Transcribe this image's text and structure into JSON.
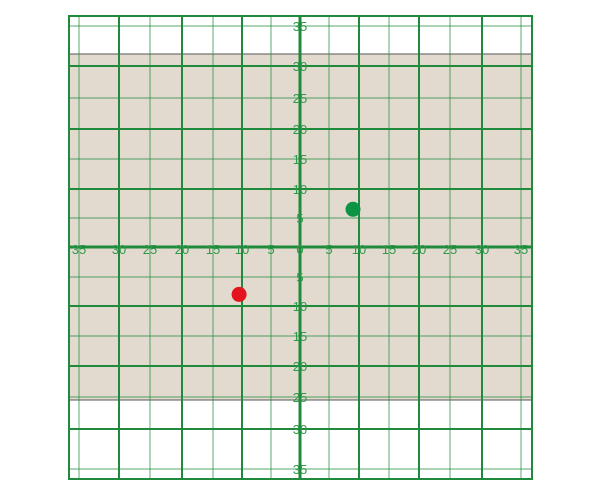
{
  "chart_data": {
    "type": "scatter",
    "title": "",
    "xlabel": "",
    "ylabel": "",
    "xlim": [
      -35,
      35
    ],
    "ylim": [
      -35,
      35
    ],
    "grid": true,
    "x_tick_labels": [
      "35",
      "30",
      "25",
      "20",
      "15",
      "10",
      "5",
      "0",
      "5",
      "10",
      "15",
      "20",
      "25",
      "30",
      "35"
    ],
    "y_tick_labels": [
      "35",
      "30",
      "25",
      "20",
      "15",
      "10",
      "5",
      "0",
      "5",
      "10",
      "15",
      "20",
      "25",
      "30",
      "35"
    ],
    "shaded_band_y": [
      -25.5,
      31.5
    ],
    "points": [
      {
        "x": 9,
        "y": 6.5,
        "color": "#0a9444"
      },
      {
        "x": -10.5,
        "y": -8,
        "color": "#e3141e"
      }
    ],
    "colors": {
      "grid": "#1f8a3c",
      "band": "#e2dace",
      "labels": "#2e9a4a"
    }
  }
}
